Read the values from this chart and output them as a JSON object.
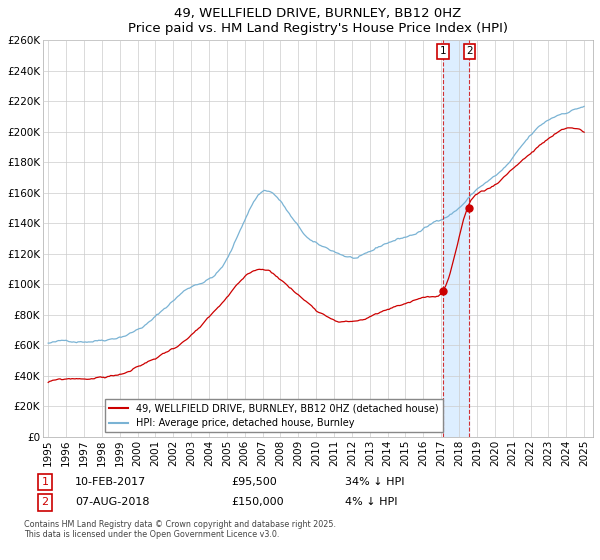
{
  "title": "49, WELLFIELD DRIVE, BURNLEY, BB12 0HZ",
  "subtitle": "Price paid vs. HM Land Registry's House Price Index (HPI)",
  "ylim": [
    0,
    260000
  ],
  "ytick_step": 20000,
  "hpi_color": "#7ab3d4",
  "price_color": "#cc0000",
  "xlim_start": 1994.7,
  "xlim_end": 2025.5,
  "purchase1_year": 2017.12,
  "purchase2_year": 2018.58,
  "purchase1_price": 95500,
  "purchase2_price": 150000,
  "legend_label_price": "49, WELLFIELD DRIVE, BURNLEY, BB12 0HZ (detached house)",
  "legend_label_hpi": "HPI: Average price, detached house, Burnley",
  "footnote": "Contains HM Land Registry data © Crown copyright and database right 2025.\nThis data is licensed under the Open Government Licence v3.0.",
  "background_color": "#ffffff",
  "grid_color": "#cccccc",
  "shade_color": "#ddeeff"
}
